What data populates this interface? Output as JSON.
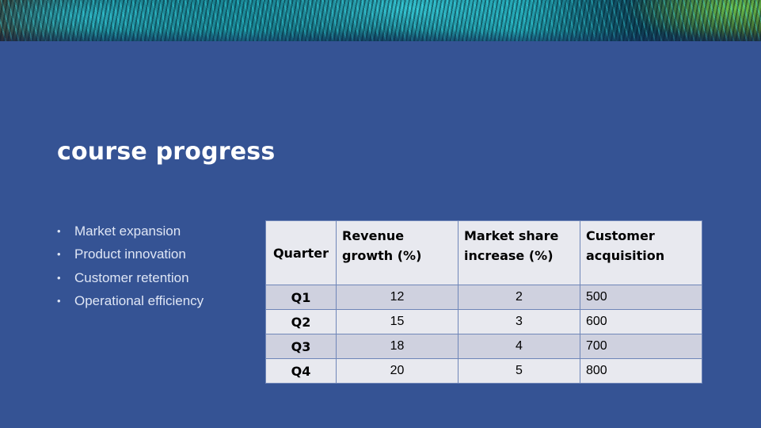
{
  "slide": {
    "title": "course progress",
    "bullets": [
      "Market expansion",
      "Product innovation",
      "Customer retention",
      "Operational efficiency"
    ]
  },
  "table": {
    "headers": [
      "Quarter",
      "Revenue growth (%)",
      "Market share increase (%)",
      "Customer acquisition"
    ],
    "rows": [
      [
        "Q1",
        "12",
        "2",
        "500"
      ],
      [
        "Q2",
        "15",
        "3",
        "600"
      ],
      [
        "Q3",
        "18",
        "4",
        "700"
      ],
      [
        "Q4",
        "20",
        "5",
        "800"
      ]
    ]
  },
  "colors": {
    "background": "#355394",
    "table_header_bg": "#e8e9ef",
    "table_row_odd_bg": "#cfd1df"
  }
}
